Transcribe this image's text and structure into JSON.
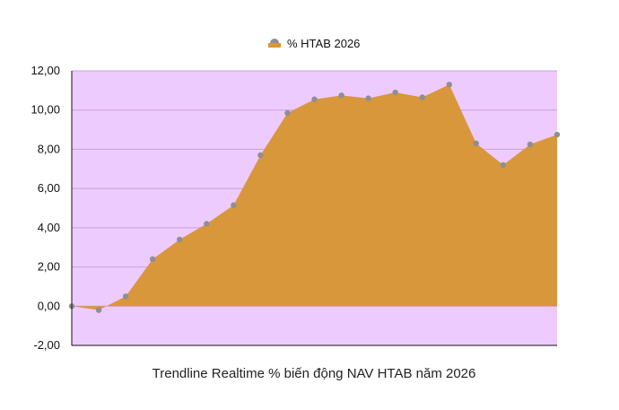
{
  "chart_data": {
    "type": "area",
    "title": "",
    "xlabel": "Trendline Realtime % biến động NAV HTAB năm 2026",
    "ylabel": "",
    "ylim": [
      -2,
      12
    ],
    "yticks": [
      "12,00",
      "10,00",
      "8,00",
      "6,00",
      "4,00",
      "2,00",
      "0,00",
      "-2,00"
    ],
    "grid": true,
    "legend": "top-center",
    "series": [
      {
        "name": "% HTAB 2026",
        "values": [
          0.0,
          -0.2,
          0.5,
          2.4,
          3.4,
          4.2,
          5.15,
          7.7,
          9.85,
          10.55,
          10.75,
          10.6,
          10.9,
          10.65,
          11.3,
          8.3,
          7.2,
          8.25,
          8.75
        ]
      }
    ],
    "colors": {
      "plot_background": "#eecbff",
      "area_fill": "#d8973a",
      "marker": "#8f8f8f",
      "gridline": "#c8a0d8"
    }
  }
}
